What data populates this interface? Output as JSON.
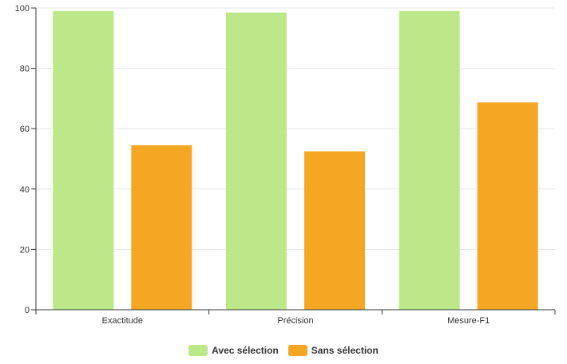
{
  "chart_data": {
    "type": "bar",
    "categories": [
      "Exactitude",
      "Précision",
      "Mesure-F1"
    ],
    "series": [
      {
        "name": "Avec sélection",
        "values": [
          99,
          98.5,
          99
        ],
        "color": "#bce88a"
      },
      {
        "name": "Sans sélection",
        "values": [
          54.5,
          52.5,
          68.7
        ],
        "color": "#f5a623"
      }
    ],
    "ylim": [
      0,
      100
    ],
    "yticks": [
      0,
      20,
      40,
      60,
      80,
      100
    ],
    "grid": true,
    "legend_position": "bottom-center",
    "title": "",
    "xlabel": "",
    "ylabel": ""
  }
}
